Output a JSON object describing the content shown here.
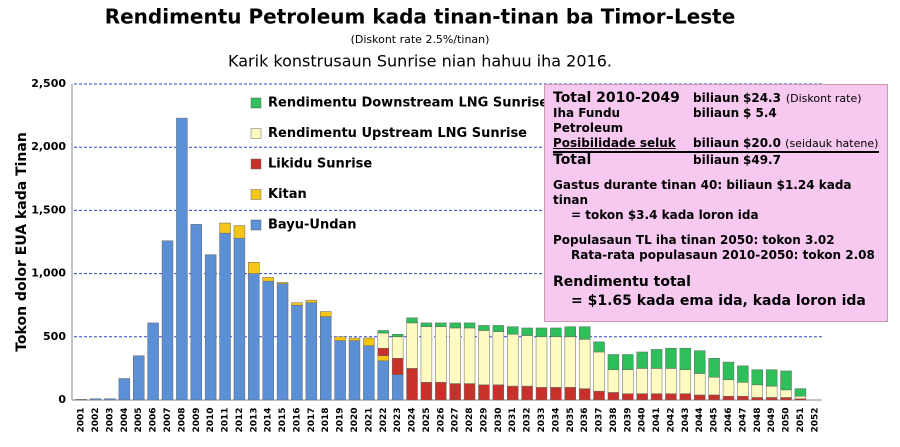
{
  "chart_data": {
    "type": "stacked-bar",
    "title": "Rendimentu Petroleum kada tinan-tinan ba Timor-Leste",
    "subtitle": "(Diskont rate 2.5%/tinan)",
    "note": "Karik konstrusaun Sunrise nian hahuu iha 2016.",
    "y_label": "Tokon dolor EUA kada Tinan",
    "categories": [
      "2001",
      "2002",
      "2003",
      "2004",
      "2005",
      "2006",
      "2007",
      "2008",
      "2009",
      "2010",
      "2011",
      "2012",
      "2013",
      "2014",
      "2015",
      "2016",
      "2017",
      "2018",
      "2019",
      "2020",
      "2021",
      "2022",
      "2023",
      "2024",
      "2025",
      "2026",
      "2027",
      "2028",
      "2029",
      "2030",
      "2031",
      "2032",
      "2033",
      "2034",
      "2035",
      "2036",
      "2037",
      "2038",
      "2039",
      "2040",
      "2041",
      "2042",
      "2043",
      "2044",
      "2045",
      "2046",
      "2047",
      "2048",
      "2049",
      "2050",
      "2051",
      "2052"
    ],
    "series": [
      {
        "name": "Bayu-Undan",
        "color": "#5b8fd6",
        "values": [
          5,
          10,
          10,
          170,
          350,
          610,
          1260,
          2230,
          1390,
          1150,
          1320,
          1280,
          1000,
          940,
          920,
          750,
          770,
          660,
          470,
          470,
          430,
          310,
          200,
          0,
          0,
          0,
          0,
          0,
          0,
          0,
          0,
          0,
          0,
          0,
          0,
          0,
          0,
          0,
          0,
          0,
          0,
          0,
          0,
          0,
          0,
          0,
          0,
          0,
          0,
          0,
          0,
          0
        ]
      },
      {
        "name": "Kitan",
        "color": "#f5c518",
        "values": [
          0,
          0,
          0,
          0,
          0,
          0,
          0,
          0,
          0,
          0,
          80,
          100,
          90,
          30,
          10,
          20,
          20,
          40,
          30,
          20,
          60,
          40,
          0,
          0,
          0,
          0,
          0,
          0,
          0,
          0,
          0,
          0,
          0,
          0,
          0,
          0,
          0,
          0,
          0,
          0,
          0,
          0,
          0,
          0,
          0,
          0,
          0,
          0,
          0,
          0,
          0,
          0
        ]
      },
      {
        "name": "Likidu Sunrise",
        "color": "#c8302a",
        "values": [
          0,
          0,
          0,
          0,
          0,
          0,
          0,
          0,
          0,
          0,
          0,
          0,
          0,
          0,
          0,
          0,
          0,
          0,
          0,
          0,
          0,
          60,
          130,
          250,
          140,
          140,
          130,
          130,
          120,
          120,
          110,
          110,
          100,
          100,
          100,
          90,
          70,
          60,
          50,
          50,
          50,
          50,
          50,
          40,
          40,
          30,
          30,
          20,
          20,
          20,
          10,
          0
        ]
      },
      {
        "name": "Rendimentu Upstream LNG Sunrise",
        "color": "#fdfbc0",
        "values": [
          0,
          0,
          0,
          0,
          0,
          0,
          0,
          0,
          0,
          0,
          0,
          0,
          0,
          0,
          0,
          0,
          0,
          0,
          0,
          0,
          0,
          120,
          170,
          360,
          440,
          440,
          440,
          440,
          430,
          420,
          410,
          400,
          400,
          400,
          400,
          390,
          310,
          180,
          190,
          200,
          200,
          200,
          190,
          170,
          140,
          130,
          110,
          100,
          90,
          60,
          20,
          0
        ]
      },
      {
        "name": "Rendimentu Downstream LNG Sunrise",
        "color": "#2fbf5a",
        "values": [
          0,
          0,
          0,
          0,
          0,
          0,
          0,
          0,
          0,
          0,
          0,
          0,
          0,
          0,
          0,
          0,
          0,
          0,
          0,
          0,
          0,
          20,
          20,
          40,
          30,
          30,
          40,
          40,
          40,
          50,
          60,
          60,
          70,
          70,
          80,
          100,
          80,
          120,
          120,
          130,
          150,
          160,
          170,
          180,
          150,
          140,
          130,
          120,
          130,
          150,
          60,
          0
        ]
      }
    ],
    "ylim": [
      0,
      2500
    ],
    "yticks": [
      0,
      500,
      {
        "value": 1000,
        "label": "1,000"
      },
      {
        "value": 1500,
        "label": "1,500"
      },
      {
        "value": 2000,
        "label": "2,000"
      },
      {
        "value": 2500,
        "label": "2,500"
      }
    ],
    "grid": true
  },
  "info_box": {
    "rows": [
      [
        "Total 2010-2049",
        "biliaun",
        "$24.3",
        "(Diskont rate)"
      ],
      [
        "Iha Fundu Petroleum",
        "biliaun",
        "$ 5.4"
      ],
      [
        "Posibilidade seluk",
        "biliaun",
        "$20.0",
        "(seidauk hatene)"
      ],
      [
        "Total",
        "biliaun",
        "$49.7"
      ]
    ],
    "lines": [
      "Gastus durante tinan 40: biliaun $1.24 kada tinan",
      "= tokon $3.4 kada loron ida",
      "Populasaun TL iha tinan 2050: tokon 3.02",
      "Rata-rata populasaun 2010-2050: tokon 2.08",
      "Rendimentu total",
      "= $1.65 kada ema ida, kada loron ida"
    ]
  }
}
